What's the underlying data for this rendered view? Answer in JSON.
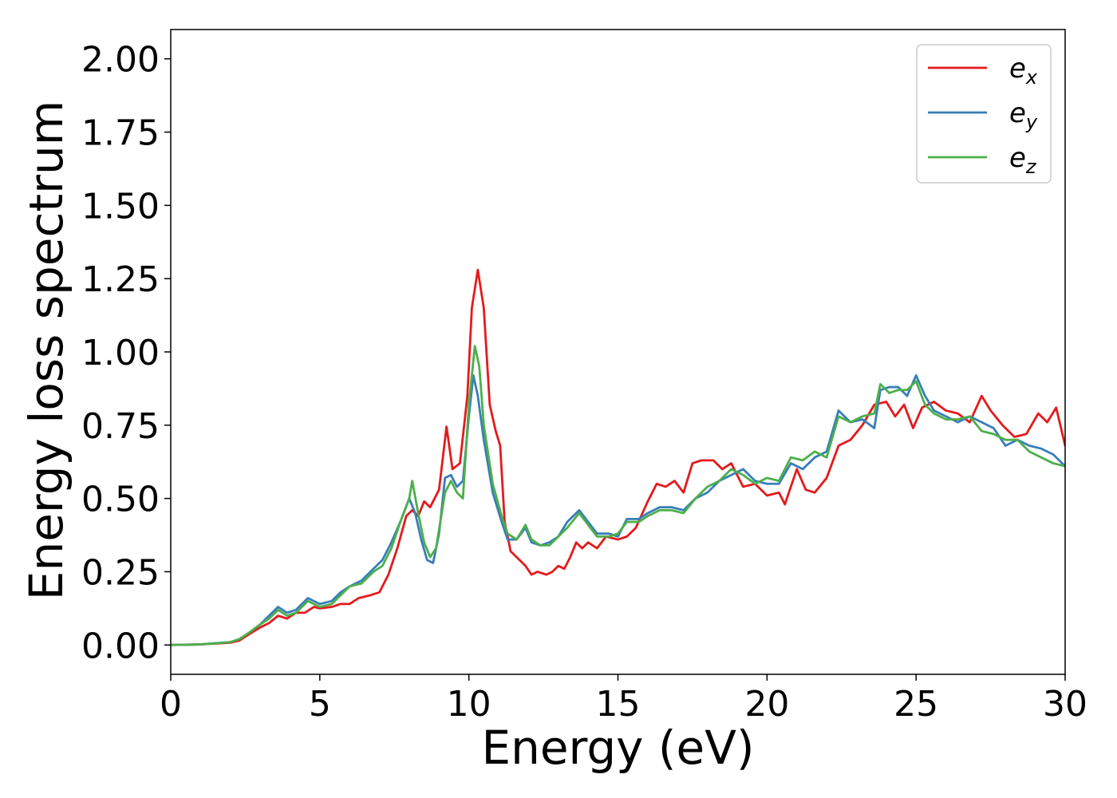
{
  "chart_data": {
    "type": "line",
    "title": "",
    "xlabel": "Energy (eV)",
    "ylabel": "Energy loss spectrum",
    "xlim": [
      0,
      30
    ],
    "ylim": [
      -0.1,
      2.1
    ],
    "xticks": [
      0,
      5,
      10,
      15,
      20,
      25,
      30
    ],
    "xtick_labels": [
      "0",
      "5",
      "10",
      "15",
      "20",
      "25",
      "30"
    ],
    "yticks": [
      0.0,
      0.25,
      0.5,
      0.75,
      1.0,
      1.25,
      1.5,
      1.75,
      2.0
    ],
    "ytick_labels": [
      "0.00",
      "0.25",
      "0.50",
      "0.75",
      "1.00",
      "1.25",
      "1.50",
      "1.75",
      "2.00"
    ],
    "grid": false,
    "legend_position": "top-right",
    "series": [
      {
        "name": "e",
        "subscript": "x",
        "color": "#e41a1c",
        "points": [
          [
            0,
            0
          ],
          [
            1,
            0.002
          ],
          [
            2,
            0.008
          ],
          [
            2.3,
            0.015
          ],
          [
            2.6,
            0.035
          ],
          [
            3,
            0.06
          ],
          [
            3.3,
            0.075
          ],
          [
            3.6,
            0.1
          ],
          [
            3.9,
            0.09
          ],
          [
            4.2,
            0.11
          ],
          [
            4.5,
            0.11
          ],
          [
            4.8,
            0.13
          ],
          [
            5,
            0.125
          ],
          [
            5.4,
            0.13
          ],
          [
            5.7,
            0.14
          ],
          [
            6,
            0.14
          ],
          [
            6.3,
            0.16
          ],
          [
            6.7,
            0.17
          ],
          [
            7,
            0.18
          ],
          [
            7.3,
            0.24
          ],
          [
            7.6,
            0.33
          ],
          [
            7.9,
            0.44
          ],
          [
            8.1,
            0.46
          ],
          [
            8.3,
            0.44
          ],
          [
            8.5,
            0.49
          ],
          [
            8.7,
            0.47
          ],
          [
            9,
            0.53
          ],
          [
            9.25,
            0.745
          ],
          [
            9.45,
            0.6
          ],
          [
            9.7,
            0.62
          ],
          [
            9.95,
            0.85
          ],
          [
            10.1,
            1.15
          ],
          [
            10.3,
            1.28
          ],
          [
            10.5,
            1.15
          ],
          [
            10.7,
            0.82
          ],
          [
            10.9,
            0.73
          ],
          [
            11.05,
            0.68
          ],
          [
            11.2,
            0.42
          ],
          [
            11.4,
            0.32
          ],
          [
            11.7,
            0.29
          ],
          [
            11.9,
            0.27
          ],
          [
            12.1,
            0.24
          ],
          [
            12.3,
            0.25
          ],
          [
            12.6,
            0.24
          ],
          [
            12.8,
            0.25
          ],
          [
            13,
            0.27
          ],
          [
            13.2,
            0.26
          ],
          [
            13.4,
            0.3
          ],
          [
            13.6,
            0.35
          ],
          [
            13.8,
            0.33
          ],
          [
            14,
            0.35
          ],
          [
            14.3,
            0.33
          ],
          [
            14.6,
            0.37
          ],
          [
            15,
            0.36
          ],
          [
            15.3,
            0.37
          ],
          [
            15.6,
            0.4
          ],
          [
            16,
            0.49
          ],
          [
            16.3,
            0.55
          ],
          [
            16.6,
            0.54
          ],
          [
            16.9,
            0.56
          ],
          [
            17.2,
            0.52
          ],
          [
            17.5,
            0.62
          ],
          [
            17.8,
            0.63
          ],
          [
            18.2,
            0.63
          ],
          [
            18.5,
            0.6
          ],
          [
            18.8,
            0.62
          ],
          [
            19.2,
            0.54
          ],
          [
            19.6,
            0.55
          ],
          [
            20,
            0.51
          ],
          [
            20.4,
            0.52
          ],
          [
            20.6,
            0.48
          ],
          [
            21,
            0.6
          ],
          [
            21.3,
            0.53
          ],
          [
            21.6,
            0.52
          ],
          [
            22,
            0.57
          ],
          [
            22.4,
            0.68
          ],
          [
            22.8,
            0.7
          ],
          [
            23.2,
            0.75
          ],
          [
            23.6,
            0.82
          ],
          [
            24,
            0.83
          ],
          [
            24.3,
            0.78
          ],
          [
            24.6,
            0.82
          ],
          [
            24.9,
            0.74
          ],
          [
            25.2,
            0.81
          ],
          [
            25.6,
            0.83
          ],
          [
            26,
            0.8
          ],
          [
            26.4,
            0.79
          ],
          [
            26.8,
            0.76
          ],
          [
            27.2,
            0.85
          ],
          [
            27.5,
            0.8
          ],
          [
            27.9,
            0.75
          ],
          [
            28.3,
            0.71
          ],
          [
            28.7,
            0.72
          ],
          [
            29.1,
            0.79
          ],
          [
            29.4,
            0.76
          ],
          [
            29.7,
            0.81
          ],
          [
            30,
            0.68
          ]
        ]
      },
      {
        "name": "e",
        "subscript": "y",
        "color": "#377eb8",
        "points": [
          [
            0,
            0
          ],
          [
            1,
            0.002
          ],
          [
            2,
            0.01
          ],
          [
            2.3,
            0.02
          ],
          [
            2.6,
            0.04
          ],
          [
            3,
            0.07
          ],
          [
            3.3,
            0.1
          ],
          [
            3.6,
            0.13
          ],
          [
            3.9,
            0.11
          ],
          [
            4.2,
            0.12
          ],
          [
            4.6,
            0.16
          ],
          [
            5,
            0.14
          ],
          [
            5.4,
            0.15
          ],
          [
            5.7,
            0.18
          ],
          [
            6,
            0.2
          ],
          [
            6.4,
            0.22
          ],
          [
            6.8,
            0.26
          ],
          [
            7.1,
            0.29
          ],
          [
            7.4,
            0.35
          ],
          [
            7.7,
            0.42
          ],
          [
            8,
            0.5
          ],
          [
            8.2,
            0.45
          ],
          [
            8.4,
            0.36
          ],
          [
            8.6,
            0.29
          ],
          [
            8.8,
            0.28
          ],
          [
            9,
            0.38
          ],
          [
            9.2,
            0.57
          ],
          [
            9.4,
            0.58
          ],
          [
            9.6,
            0.54
          ],
          [
            9.8,
            0.56
          ],
          [
            10,
            0.78
          ],
          [
            10.15,
            0.92
          ],
          [
            10.3,
            0.85
          ],
          [
            10.5,
            0.7
          ],
          [
            10.8,
            0.52
          ],
          [
            11.1,
            0.42
          ],
          [
            11.3,
            0.36
          ],
          [
            11.6,
            0.36
          ],
          [
            11.9,
            0.4
          ],
          [
            12.1,
            0.35
          ],
          [
            12.4,
            0.34
          ],
          [
            12.7,
            0.35
          ],
          [
            13,
            0.37
          ],
          [
            13.3,
            0.42
          ],
          [
            13.7,
            0.46
          ],
          [
            14,
            0.42
          ],
          [
            14.3,
            0.38
          ],
          [
            14.7,
            0.38
          ],
          [
            15,
            0.37
          ],
          [
            15.3,
            0.43
          ],
          [
            15.7,
            0.43
          ],
          [
            16,
            0.45
          ],
          [
            16.4,
            0.47
          ],
          [
            16.8,
            0.47
          ],
          [
            17.2,
            0.46
          ],
          [
            17.6,
            0.5
          ],
          [
            18,
            0.52
          ],
          [
            18.4,
            0.56
          ],
          [
            18.8,
            0.58
          ],
          [
            19.2,
            0.6
          ],
          [
            19.6,
            0.56
          ],
          [
            20,
            0.55
          ],
          [
            20.4,
            0.55
          ],
          [
            20.8,
            0.62
          ],
          [
            21.2,
            0.6
          ],
          [
            21.6,
            0.64
          ],
          [
            22,
            0.66
          ],
          [
            22.4,
            0.8
          ],
          [
            22.8,
            0.76
          ],
          [
            23.2,
            0.77
          ],
          [
            23.6,
            0.74
          ],
          [
            23.8,
            0.87
          ],
          [
            24.1,
            0.88
          ],
          [
            24.4,
            0.88
          ],
          [
            24.7,
            0.85
          ],
          [
            25,
            0.92
          ],
          [
            25.3,
            0.85
          ],
          [
            25.6,
            0.8
          ],
          [
            26,
            0.78
          ],
          [
            26.4,
            0.76
          ],
          [
            26.8,
            0.78
          ],
          [
            27.2,
            0.76
          ],
          [
            27.6,
            0.74
          ],
          [
            28,
            0.68
          ],
          [
            28.4,
            0.7
          ],
          [
            28.8,
            0.68
          ],
          [
            29.2,
            0.67
          ],
          [
            29.6,
            0.65
          ],
          [
            30,
            0.61
          ]
        ]
      },
      {
        "name": "e",
        "subscript": "z",
        "color": "#4daf4a",
        "points": [
          [
            0,
            0
          ],
          [
            1,
            0.002
          ],
          [
            2,
            0.01
          ],
          [
            2.3,
            0.02
          ],
          [
            2.6,
            0.04
          ],
          [
            3,
            0.07
          ],
          [
            3.3,
            0.09
          ],
          [
            3.6,
            0.12
          ],
          [
            3.9,
            0.1
          ],
          [
            4.2,
            0.11
          ],
          [
            4.6,
            0.15
          ],
          [
            5,
            0.13
          ],
          [
            5.4,
            0.14
          ],
          [
            5.7,
            0.17
          ],
          [
            6,
            0.2
          ],
          [
            6.4,
            0.21
          ],
          [
            6.8,
            0.25
          ],
          [
            7.1,
            0.27
          ],
          [
            7.4,
            0.33
          ],
          [
            7.7,
            0.42
          ],
          [
            8,
            0.5
          ],
          [
            8.1,
            0.56
          ],
          [
            8.3,
            0.45
          ],
          [
            8.5,
            0.35
          ],
          [
            8.7,
            0.3
          ],
          [
            8.9,
            0.33
          ],
          [
            9.2,
            0.52
          ],
          [
            9.4,
            0.56
          ],
          [
            9.6,
            0.52
          ],
          [
            9.8,
            0.5
          ],
          [
            10,
            0.82
          ],
          [
            10.2,
            1.02
          ],
          [
            10.35,
            0.95
          ],
          [
            10.5,
            0.75
          ],
          [
            10.8,
            0.55
          ],
          [
            11.1,
            0.44
          ],
          [
            11.3,
            0.38
          ],
          [
            11.6,
            0.36
          ],
          [
            11.9,
            0.41
          ],
          [
            12.1,
            0.36
          ],
          [
            12.4,
            0.34
          ],
          [
            12.7,
            0.34
          ],
          [
            13,
            0.37
          ],
          [
            13.3,
            0.4
          ],
          [
            13.7,
            0.45
          ],
          [
            14,
            0.41
          ],
          [
            14.3,
            0.37
          ],
          [
            14.7,
            0.37
          ],
          [
            15,
            0.38
          ],
          [
            15.3,
            0.42
          ],
          [
            15.7,
            0.42
          ],
          [
            16,
            0.44
          ],
          [
            16.4,
            0.46
          ],
          [
            16.8,
            0.46
          ],
          [
            17.2,
            0.45
          ],
          [
            17.6,
            0.5
          ],
          [
            18,
            0.54
          ],
          [
            18.4,
            0.56
          ],
          [
            18.8,
            0.6
          ],
          [
            19.2,
            0.58
          ],
          [
            19.6,
            0.55
          ],
          [
            20,
            0.57
          ],
          [
            20.4,
            0.56
          ],
          [
            20.8,
            0.64
          ],
          [
            21.2,
            0.63
          ],
          [
            21.6,
            0.66
          ],
          [
            22,
            0.64
          ],
          [
            22.4,
            0.78
          ],
          [
            22.8,
            0.76
          ],
          [
            23.2,
            0.78
          ],
          [
            23.6,
            0.79
          ],
          [
            23.8,
            0.89
          ],
          [
            24.1,
            0.86
          ],
          [
            24.4,
            0.87
          ],
          [
            24.7,
            0.87
          ],
          [
            25,
            0.9
          ],
          [
            25.3,
            0.82
          ],
          [
            25.6,
            0.79
          ],
          [
            26,
            0.77
          ],
          [
            26.4,
            0.77
          ],
          [
            26.8,
            0.78
          ],
          [
            27.2,
            0.73
          ],
          [
            27.6,
            0.72
          ],
          [
            28,
            0.7
          ],
          [
            28.4,
            0.7
          ],
          [
            28.8,
            0.66
          ],
          [
            29.2,
            0.64
          ],
          [
            29.6,
            0.62
          ],
          [
            30,
            0.61
          ]
        ]
      }
    ]
  }
}
